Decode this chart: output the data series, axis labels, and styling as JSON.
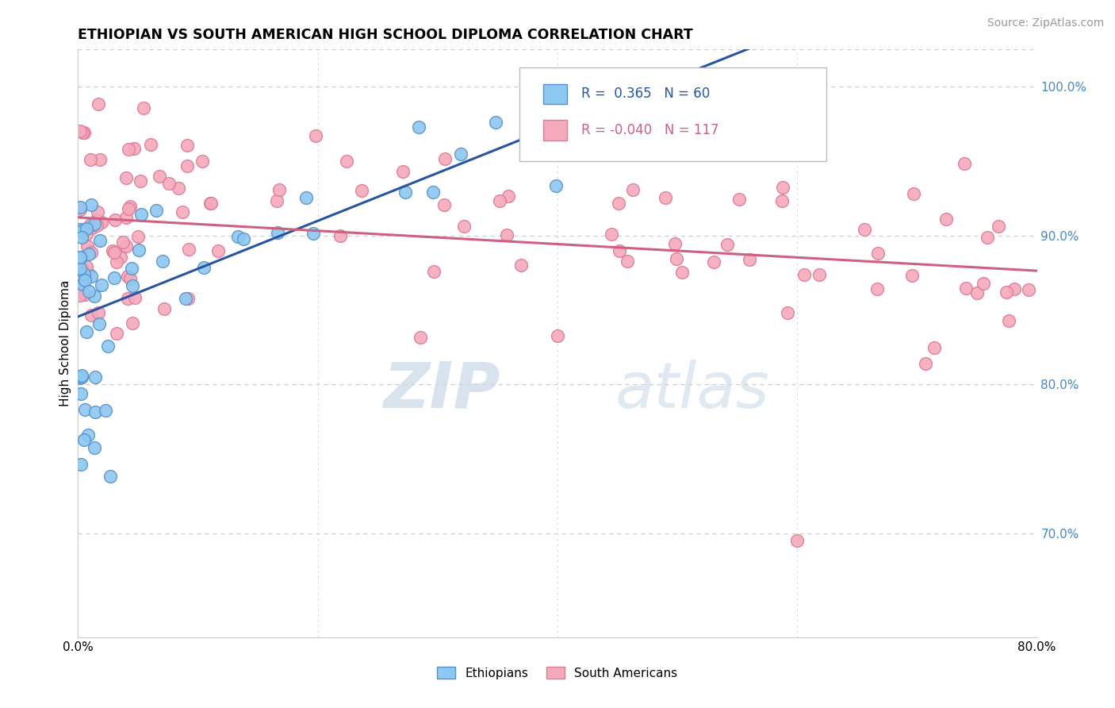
{
  "title": "ETHIOPIAN VS SOUTH AMERICAN HIGH SCHOOL DIPLOMA CORRELATION CHART",
  "source": "Source: ZipAtlas.com",
  "ylabel": "High School Diploma",
  "legend_ethiopians": "Ethiopians",
  "legend_south_americans": "South Americans",
  "r_ethiopians": 0.365,
  "n_ethiopians": 60,
  "r_south_americans": -0.04,
  "n_south_americans": 117,
  "xlim": [
    0.0,
    80.0
  ],
  "ylim": [
    63.0,
    102.5
  ],
  "blue_color": "#8DC8F0",
  "blue_edge": "#5590CC",
  "pink_color": "#F5AABB",
  "pink_edge": "#E07898",
  "blue_line_color": "#2855A0",
  "pink_line_color": "#D06080",
  "right_tick_color": "#4488CC",
  "grid_color": "#CCCCCC",
  "yticks": [
    100,
    90,
    80,
    70
  ],
  "ytick_labels": [
    "100.0%",
    "90.0%",
    "80.0%",
    "70.0%"
  ],
  "watermark_zip": "ZIP",
  "watermark_atlas": "atlas",
  "seed": 42
}
